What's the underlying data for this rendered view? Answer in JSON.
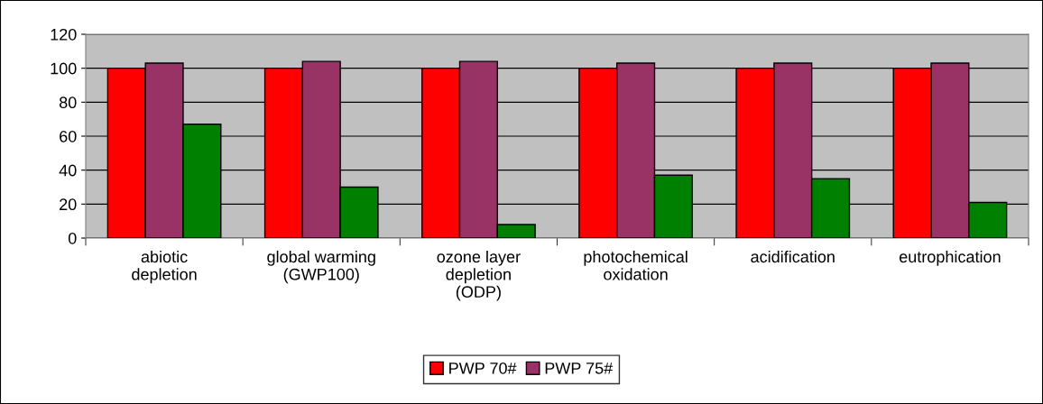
{
  "chart_data": {
    "type": "bar",
    "categories": [
      "abiotic\ndepletion",
      "global warming\n(GWP100)",
      "ozone layer\ndepletion\n(ODP)",
      "photochemical\noxidation",
      "acidification",
      "eutrophication"
    ],
    "series": [
      {
        "name": "PWP 70#",
        "color": "#ff0000",
        "values": [
          100,
          100,
          100,
          100,
          100,
          100
        ]
      },
      {
        "name": "PWP 75#",
        "color": "#993366",
        "values": [
          103,
          104,
          104,
          103,
          103,
          103
        ]
      },
      {
        "color": "#008000",
        "values": [
          67,
          30,
          8,
          37,
          35,
          21
        ]
      }
    ],
    "ylim": [
      0,
      120
    ],
    "yticks": [
      0,
      20,
      40,
      60,
      80,
      100,
      120
    ],
    "grid": "y",
    "legend": "bottom"
  }
}
